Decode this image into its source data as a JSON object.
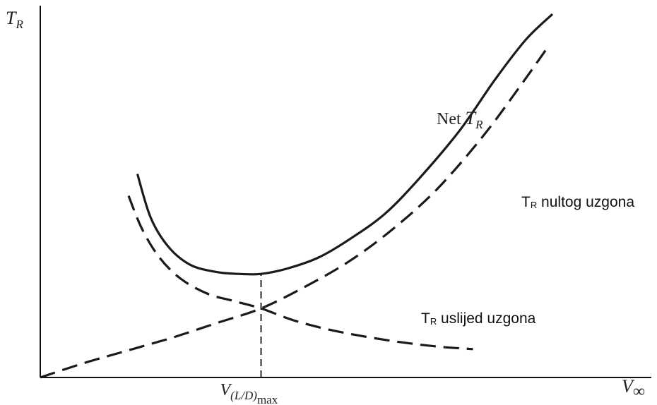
{
  "chart_data": {
    "type": "line",
    "title": "",
    "axes": {
      "y_label_main": "T",
      "y_label_sub": "R",
      "x_label_main": "V",
      "x_label_sub": "∞",
      "x_tick": {
        "main": "V",
        "sub": "(L/D)",
        "subsub": "max",
        "x": 0.5
      },
      "xlim": [
        0,
        1.3
      ],
      "ylim": [
        0,
        1
      ],
      "grid": false
    },
    "series": [
      {
        "name": "Net T_R",
        "label_main": "Net ",
        "label_italic": "T",
        "label_sub": "R",
        "style": "solid",
        "color": "#1a1a1a",
        "x": [
          0.22,
          0.25,
          0.29,
          0.34,
          0.4,
          0.45,
          0.5,
          0.56,
          0.63,
          0.7,
          0.78,
          0.86,
          0.95,
          1.03,
          1.1,
          1.16
        ],
        "y": [
          0.56,
          0.44,
          0.36,
          0.31,
          0.29,
          0.285,
          0.285,
          0.3,
          0.33,
          0.38,
          0.45,
          0.55,
          0.68,
          0.82,
          0.93,
          1.0
        ]
      },
      {
        "name": "T_R nultog uzgona",
        "label_main": "T",
        "label_sub": "R",
        "label_rest": " nultog uzgona",
        "style": "dashed",
        "color": "#1a1a1a",
        "x": [
          0.0,
          0.1,
          0.2,
          0.3,
          0.4,
          0.5,
          0.6,
          0.7,
          0.8,
          0.9,
          1.0,
          1.08,
          1.15
        ],
        "y": [
          0.0,
          0.04,
          0.075,
          0.11,
          0.15,
          0.19,
          0.25,
          0.32,
          0.41,
          0.52,
          0.66,
          0.79,
          0.91
        ]
      },
      {
        "name": "T_R uslijed uzgona",
        "label_main": "T",
        "label_sub": "R",
        "label_rest": " uslijed uzgona",
        "style": "dashed",
        "color": "#1a1a1a",
        "x": [
          0.2,
          0.23,
          0.27,
          0.32,
          0.38,
          0.44,
          0.5,
          0.58,
          0.68,
          0.8,
          0.9,
          0.98
        ],
        "y": [
          0.5,
          0.41,
          0.33,
          0.27,
          0.23,
          0.21,
          0.19,
          0.155,
          0.125,
          0.1,
          0.085,
          0.078
        ]
      }
    ],
    "annotations": [
      {
        "type": "vertical-dashed-line",
        "x": 0.5,
        "y_from": 0,
        "y_to": 0.285
      }
    ]
  }
}
